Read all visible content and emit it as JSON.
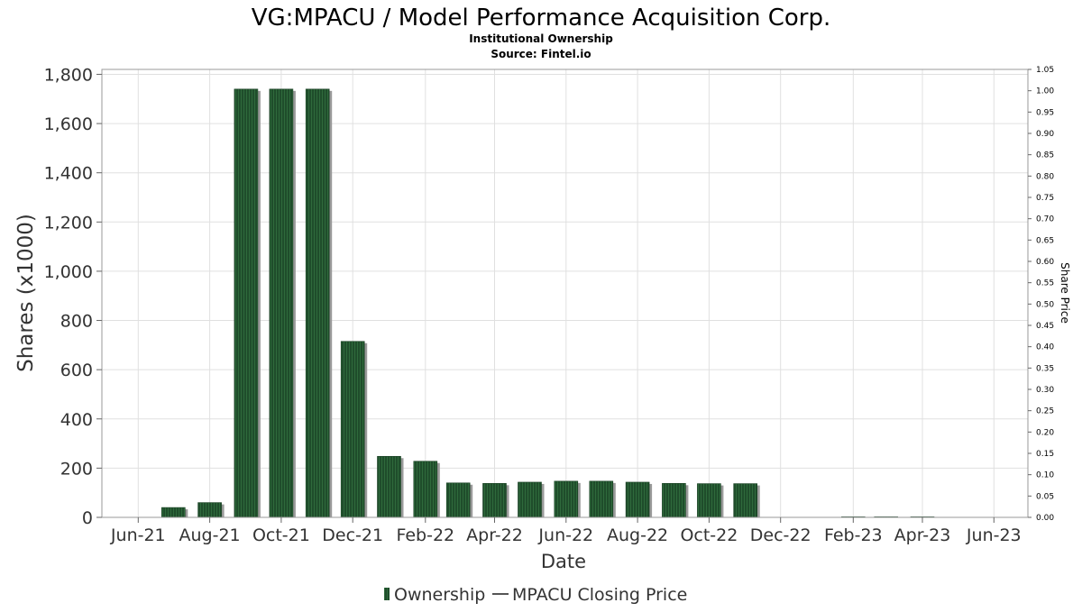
{
  "chart_data": {
    "type": "bar",
    "title": "VG:MPACU / Model Performance Acquisition Corp.",
    "subtitle": "Institutional Ownership",
    "source": "Source: Fintel.io",
    "xlabel": "Date",
    "ylabel": "Shares (x1000)",
    "y2label": "Share Price",
    "ylim": [
      0,
      1820
    ],
    "y2lim": [
      0,
      1.05
    ],
    "yticks": [
      0,
      200,
      400,
      600,
      800,
      1000,
      1200,
      1400,
      1600,
      1800
    ],
    "yticklabels": [
      "0",
      "200",
      "400",
      "600",
      "800",
      "1,000",
      "1,200",
      "1,400",
      "1,600",
      "1,800"
    ],
    "y2ticks": [
      "0.00",
      "0.05",
      "0.10",
      "0.15",
      "0.20",
      "0.25",
      "0.30",
      "0.35",
      "0.40",
      "0.45",
      "0.50",
      "0.55",
      "0.60",
      "0.65",
      "0.70",
      "0.75",
      "0.80",
      "0.85",
      "0.90",
      "0.95",
      "1.00",
      "1.05"
    ],
    "xlim": [
      "2021-05-01",
      "2023-06-30"
    ],
    "xticks": [
      {
        "date": "2021-06-01",
        "label": "Jun-21"
      },
      {
        "date": "2021-08-01",
        "label": "Aug-21"
      },
      {
        "date": "2021-10-01",
        "label": "Oct-21"
      },
      {
        "date": "2021-12-01",
        "label": "Dec-21"
      },
      {
        "date": "2022-02-01",
        "label": "Feb-22"
      },
      {
        "date": "2022-04-01",
        "label": "Apr-22"
      },
      {
        "date": "2022-06-01",
        "label": "Jun-22"
      },
      {
        "date": "2022-08-01",
        "label": "Aug-22"
      },
      {
        "date": "2022-10-01",
        "label": "Oct-22"
      },
      {
        "date": "2022-12-01",
        "label": "Dec-22"
      },
      {
        "date": "2023-02-01",
        "label": "Feb-23"
      },
      {
        "date": "2023-04-01",
        "label": "Apr-23"
      },
      {
        "date": "2023-06-01",
        "label": "Jun-23"
      }
    ],
    "grid": true,
    "legend_position": "bottom",
    "series": [
      {
        "name": "Ownership",
        "type": "bar",
        "axis": "left",
        "color": "#1f4d2b",
        "points": [
          {
            "date": "2021-07-01",
            "value": 40
          },
          {
            "date": "2021-08-01",
            "value": 60
          },
          {
            "date": "2021-09-01",
            "value": 1740
          },
          {
            "date": "2021-10-01",
            "value": 1740
          },
          {
            "date": "2021-11-01",
            "value": 1740
          },
          {
            "date": "2021-12-01",
            "value": 715
          },
          {
            "date": "2022-01-01",
            "value": 248
          },
          {
            "date": "2022-02-01",
            "value": 228
          },
          {
            "date": "2022-03-01",
            "value": 140
          },
          {
            "date": "2022-04-01",
            "value": 138
          },
          {
            "date": "2022-05-01",
            "value": 143
          },
          {
            "date": "2022-06-01",
            "value": 147
          },
          {
            "date": "2022-07-01",
            "value": 147
          },
          {
            "date": "2022-08-01",
            "value": 143
          },
          {
            "date": "2022-09-01",
            "value": 138
          },
          {
            "date": "2022-10-01",
            "value": 137
          },
          {
            "date": "2022-11-01",
            "value": 137
          },
          {
            "date": "2023-02-01",
            "value": 2
          },
          {
            "date": "2023-03-01",
            "value": 2
          },
          {
            "date": "2023-04-01",
            "value": 2
          }
        ]
      },
      {
        "name": "MPACU Closing Price",
        "type": "line",
        "axis": "right",
        "color": "#555555",
        "points": []
      }
    ]
  }
}
